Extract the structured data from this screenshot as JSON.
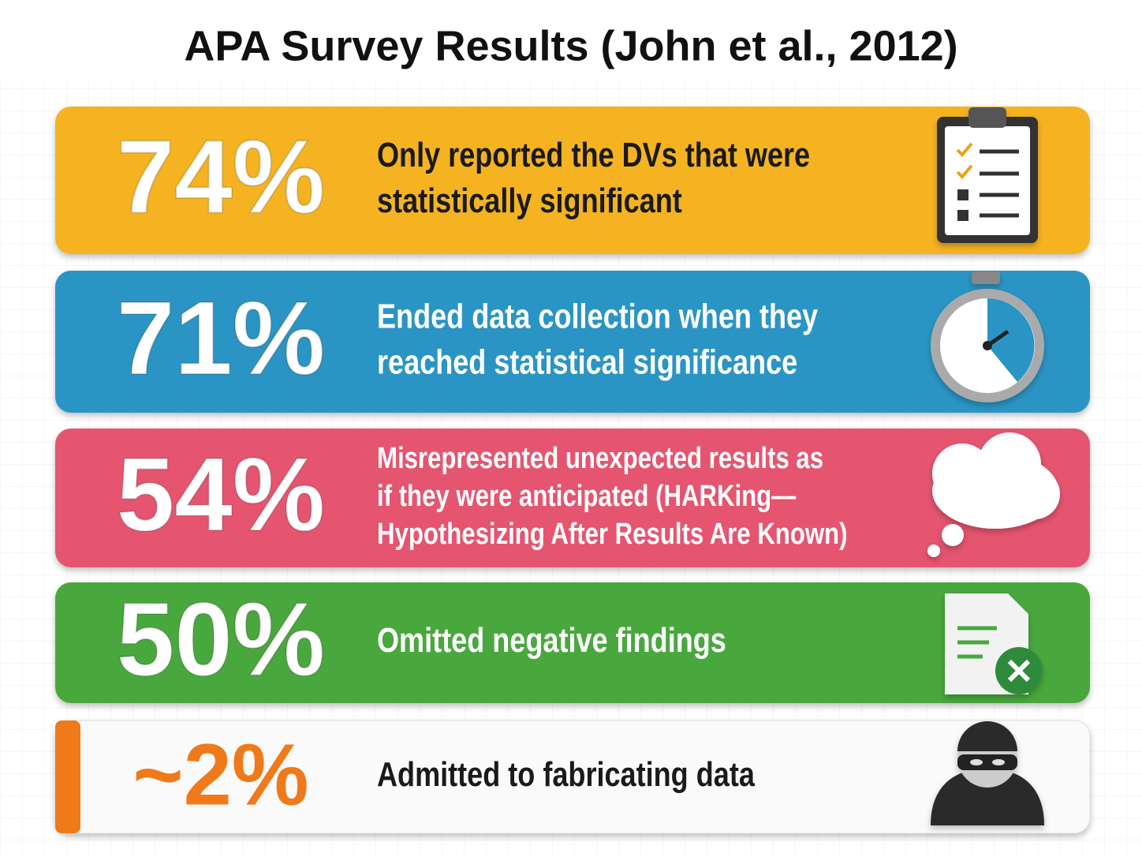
{
  "title": "APA Survey Results (John et al., 2012)",
  "items": [
    {
      "stat": "74%",
      "lines": [
        "Only reported the DVs that were",
        "statistically significant"
      ]
    },
    {
      "stat": "71%",
      "lines": [
        "Ended data collection when they",
        "reached statistical significance"
      ]
    },
    {
      "stat": "54%",
      "lines": [
        "Misrepresented unexpected results as",
        "if they were anticipated (HARKing—",
        "Hypothesizing After Results Are Known)"
      ]
    },
    {
      "stat": "50%",
      "lines": [
        "Omitted negative findings"
      ]
    },
    {
      "stat": "~2%",
      "lines": [
        "Admitted to fabricating data"
      ]
    }
  ]
}
